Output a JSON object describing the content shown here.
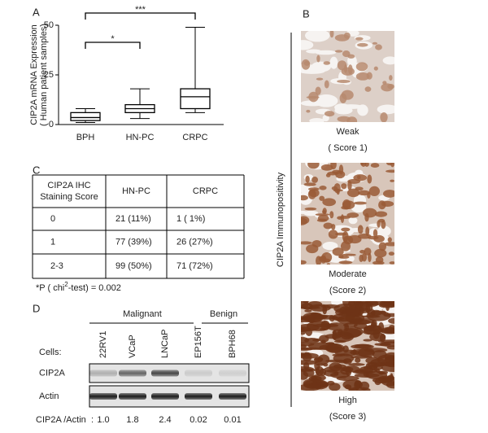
{
  "panel_labels": [
    "A",
    "B",
    "C",
    "D"
  ],
  "chart_data": {
    "type": "box",
    "y_label_lines": [
      "CIP2A mRNA Expression",
      "( Human patient samples)"
    ],
    "categories": [
      "BPH",
      "HN-PC",
      "CRPC"
    ],
    "stats": [
      {
        "min": 1,
        "q1": 2,
        "median": 3.5,
        "q3": 6,
        "max": 8
      },
      {
        "min": 3,
        "q1": 6,
        "median": 8,
        "q3": 10,
        "max": 18
      },
      {
        "min": 6,
        "q1": 8,
        "median": 14,
        "q3": 18,
        "max": 49
      }
    ],
    "color": "#000000",
    "ylim": [
      0,
      50
    ],
    "yticks": [
      0,
      25,
      50
    ],
    "annotations": [
      "*",
      "***"
    ]
  },
  "panel_b": {
    "side_label": "CIP2A  Immunopositivity",
    "images": [
      {
        "caption": "Weak",
        "score": "( Score 1)"
      },
      {
        "caption": "Moderate",
        "score": "(Score 2)"
      },
      {
        "caption": "High",
        "score": "(Score  3)"
      }
    ]
  },
  "panel_c": {
    "header_lines": [
      "CIP2A IHC",
      "Staining Score"
    ],
    "header": [
      "HN-PC",
      "CRPC"
    ],
    "rows": [
      [
        "0",
        "21 (11%)",
        "1 ( 1%)"
      ],
      [
        "1",
        "77 (39%)",
        "26 (27%)"
      ],
      [
        "2-3",
        "99 (50%)",
        "71 (72%)"
      ]
    ],
    "footnote": [
      "*P ( chi",
      "2",
      "-test) = 0.002"
    ]
  },
  "panel_d": {
    "groups": [
      "Malignant",
      "Benign"
    ],
    "cells_label": "Cells:",
    "lanes": [
      "22RV1",
      "VCaP",
      "LNCaP",
      "EP156T",
      "BPH68"
    ],
    "blots": [
      "CIP2A",
      "Actin"
    ],
    "ratio_label": "CIP2A /Actin",
    "ratio_sep": ":",
    "ratios": [
      "1.0",
      "1.8",
      "2.4",
      "0.02",
      "0.01"
    ]
  }
}
